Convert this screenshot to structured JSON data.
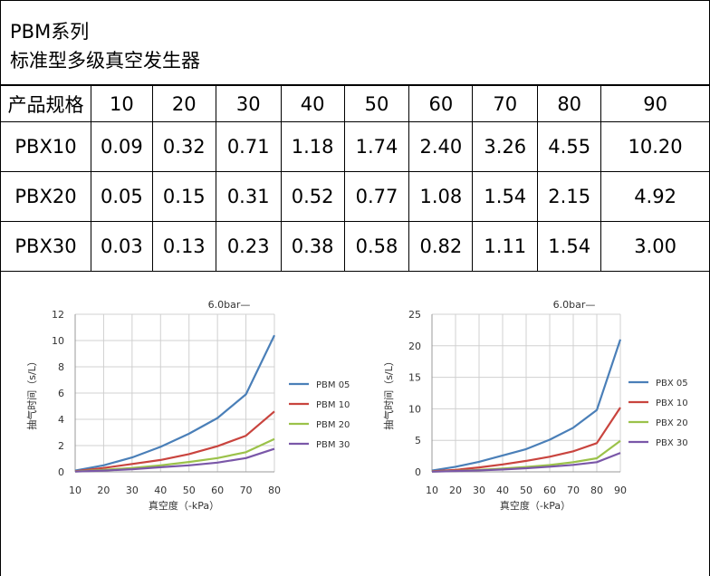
{
  "title": {
    "line1": "PBM系列",
    "line2": "标准型多级真空发生器"
  },
  "table": {
    "header": [
      "产品规格",
      "10",
      "20",
      "30",
      "40",
      "50",
      "60",
      "70",
      "80",
      "90"
    ],
    "rows": [
      [
        "PBX10",
        "0.09",
        "0.32",
        "0.71",
        "1.18",
        "1.74",
        "2.40",
        "3.26",
        "4.55",
        "10.20"
      ],
      [
        "PBX20",
        "0.05",
        "0.15",
        "0.31",
        "0.52",
        "0.77",
        "1.08",
        "1.54",
        "2.15",
        "4.92"
      ],
      [
        "PBX30",
        "0.03",
        "0.13",
        "0.23",
        "0.38",
        "0.58",
        "0.82",
        "1.11",
        "1.54",
        "3.00"
      ]
    ]
  },
  "chart_data": [
    {
      "type": "line",
      "annotation": "6.0bar—",
      "xlabel": "真空度（-kPa）",
      "ylabel": "抽气时间（s/L）",
      "x": [
        10,
        20,
        30,
        40,
        50,
        60,
        70,
        80
      ],
      "xlim": [
        10,
        80
      ],
      "ylim": [
        0,
        12
      ],
      "yticks": [
        0,
        2,
        4,
        6,
        8,
        10,
        12
      ],
      "grid": true,
      "legend": "right",
      "series": [
        {
          "name": "PBM 05",
          "color": "#4a7fb8",
          "values": [
            0.1,
            0.5,
            1.1,
            1.9,
            2.9,
            4.1,
            5.9,
            10.4
          ]
        },
        {
          "name": "PBM 10",
          "color": "#c9443e",
          "values": [
            0.05,
            0.3,
            0.6,
            0.9,
            1.35,
            1.95,
            2.75,
            4.6
          ]
        },
        {
          "name": "PBM 20",
          "color": "#9bc24a",
          "values": [
            0.03,
            0.15,
            0.3,
            0.5,
            0.75,
            1.05,
            1.5,
            2.5
          ]
        },
        {
          "name": "PBM 30",
          "color": "#7a57a8",
          "values": [
            0.02,
            0.1,
            0.2,
            0.35,
            0.5,
            0.7,
            1.05,
            1.75
          ]
        }
      ]
    },
    {
      "type": "line",
      "annotation": "6.0bar—",
      "xlabel": "真空度（-kPa）",
      "ylabel": "抽气时间（s/L）",
      "x": [
        10,
        20,
        30,
        40,
        50,
        60,
        70,
        80,
        90
      ],
      "xlim": [
        10,
        90
      ],
      "ylim": [
        0,
        25
      ],
      "yticks": [
        0,
        5,
        10,
        15,
        20,
        25
      ],
      "grid": true,
      "legend": "right",
      "series": [
        {
          "name": "PBX 05",
          "color": "#4a7fb8",
          "values": [
            0.2,
            0.8,
            1.6,
            2.6,
            3.6,
            5.1,
            7.0,
            9.8,
            21.0
          ]
        },
        {
          "name": "PBX 10",
          "color": "#c9443e",
          "values": [
            0.09,
            0.32,
            0.71,
            1.18,
            1.74,
            2.4,
            3.26,
            4.55,
            10.2
          ]
        },
        {
          "name": "PBX 20",
          "color": "#9bc24a",
          "values": [
            0.05,
            0.15,
            0.31,
            0.52,
            0.77,
            1.08,
            1.54,
            2.15,
            4.92
          ]
        },
        {
          "name": "PBX 30",
          "color": "#7a57a8",
          "values": [
            0.03,
            0.13,
            0.23,
            0.38,
            0.58,
            0.82,
            1.11,
            1.54,
            3.0
          ]
        }
      ]
    }
  ]
}
